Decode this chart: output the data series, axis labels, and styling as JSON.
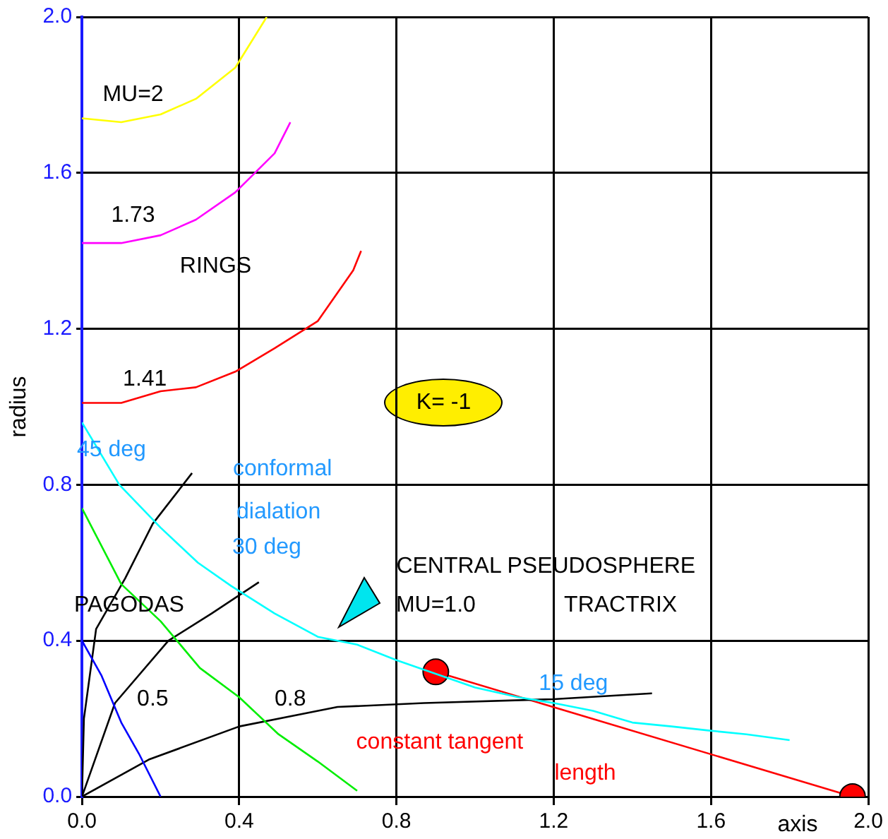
{
  "chart_data": {
    "type": "line",
    "xlabel": "axis",
    "ylabel": "radius",
    "xlim": [
      0,
      2
    ],
    "ylim": [
      0,
      2
    ],
    "xticks": [
      {
        "value": 0,
        "label": "0.0"
      },
      {
        "value": 0.4,
        "label": "0.4"
      },
      {
        "value": 0.8,
        "label": "0.8"
      },
      {
        "value": 1.2,
        "label": "1.2"
      },
      {
        "value": 1.6,
        "label": "1.6"
      },
      {
        "value": 2,
        "label": "2.0"
      }
    ],
    "yticks": [
      {
        "value": 0,
        "label": "0.0"
      },
      {
        "value": 0.4,
        "label": "0.4"
      },
      {
        "value": 0.8,
        "label": "0.8"
      },
      {
        "value": 1.2,
        "label": "1.2"
      },
      {
        "value": 1.6,
        "label": "1.6"
      },
      {
        "value": 2,
        "label": "2.0"
      }
    ],
    "grid": true,
    "marker": "none",
    "line_style": "solid",
    "series": [
      {
        "color": "#ffff00",
        "x": [
          0,
          0.1,
          0.2,
          0.29,
          0.39,
          0.47
        ],
        "values": [
          1.74,
          1.73,
          1.75,
          1.79,
          1.87,
          2.0
        ]
      },
      {
        "color": "#ff00ff",
        "x": [
          0,
          0.1,
          0.2,
          0.29,
          0.39,
          0.49,
          0.53
        ],
        "values": [
          1.42,
          1.42,
          1.44,
          1.48,
          1.55,
          1.65,
          1.73
        ]
      },
      {
        "color": "#ff0000",
        "x": [
          0,
          0.1,
          0.2,
          0.29,
          0.39,
          0.49,
          0.6,
          0.69,
          0.71
        ],
        "values": [
          1.01,
          1.01,
          1.04,
          1.05,
          1.09,
          1.15,
          1.22,
          1.35,
          1.4
        ]
      },
      {
        "color": "#00ffff",
        "x": [
          0,
          0.095,
          0.2,
          0.295,
          0.38,
          0.49,
          0.6,
          0.7,
          0.8,
          1.0,
          1.11,
          1.2,
          1.3,
          1.4,
          1.5,
          1.59,
          1.69,
          1.8
        ],
        "values": [
          0.96,
          0.8,
          0.69,
          0.6,
          0.54,
          0.47,
          0.41,
          0.39,
          0.35,
          0.28,
          0.255,
          0.24,
          0.22,
          0.19,
          0.18,
          0.17,
          0.16,
          0.145
        ]
      },
      {
        "color": "#00ee00",
        "x": [
          0,
          0.1,
          0.2,
          0.3,
          0.4,
          0.5,
          0.6,
          0.7
        ],
        "values": [
          0.74,
          0.545,
          0.45,
          0.33,
          0.255,
          0.16,
          0.09,
          0.015
        ]
      },
      {
        "color": "#0000ff",
        "x": [
          0,
          0.05,
          0.1,
          0.145,
          0.2
        ],
        "values": [
          0.4,
          0.31,
          0.19,
          0.11,
          0.0
        ]
      },
      {
        "color": "#000000",
        "x": [
          0,
          0.005,
          0.036,
          0.11,
          0.18,
          0.28
        ],
        "values": [
          0,
          0.2,
          0.43,
          0.56,
          0.7,
          0.83
        ]
      },
      {
        "color": "#000000",
        "x": [
          0,
          0.084,
          0.22,
          0.33,
          0.45
        ],
        "values": [
          0,
          0.24,
          0.4,
          0.47,
          0.55
        ]
      },
      {
        "color": "#000000",
        "x": [
          0,
          0.17,
          0.4,
          0.65,
          0.87,
          1.2,
          1.45
        ],
        "values": [
          0,
          0.095,
          0.18,
          0.23,
          0.24,
          0.25,
          0.265
        ]
      },
      {
        "color": "#ff0000",
        "marker": "circle",
        "x": [
          0.9,
          1.96
        ],
        "values": [
          0.32,
          0.0
        ]
      }
    ],
    "annotations": [
      "MU=2",
      "1.73",
      "RINGS",
      "1.41",
      "K= -1",
      "45 deg",
      "conformal",
      "dialation",
      "30 deg",
      "PAGODAS",
      "CENTRAL PSEUDOSPHERE",
      "MU=1.0",
      "TRACTRIX",
      "0.5",
      "0.8",
      "15 deg",
      "constant tangent",
      "length"
    ]
  }
}
